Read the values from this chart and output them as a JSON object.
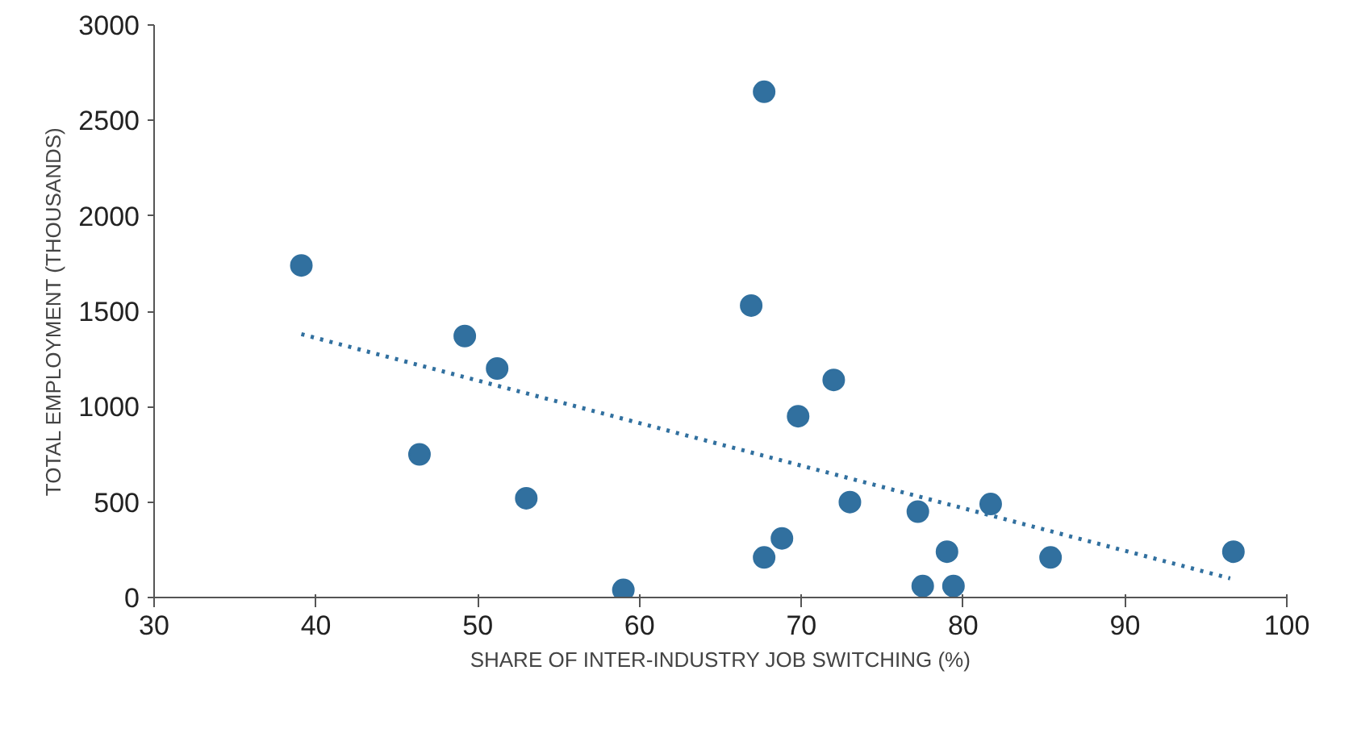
{
  "chart_data": {
    "type": "scatter",
    "xlabel": "SHARE OF INTER-INDUSTRY JOB SWITCHING (%)",
    "ylabel": "TOTAL EMPLOYMENT (THOUSANDS)",
    "xlim": [
      30,
      100
    ],
    "xticks": [
      30,
      40,
      50,
      60,
      70,
      80,
      90,
      100
    ],
    "ylim": [
      0,
      3000
    ],
    "yticks": [
      0,
      500,
      1000,
      1500,
      2000,
      2500,
      3000
    ],
    "grid": false,
    "series": [
      {
        "color": "#31709f",
        "marker": "circle",
        "x": [
          39.1,
          49.2,
          51.2,
          46.4,
          53.0,
          59.0,
          66.9,
          67.7,
          67.7,
          68.8,
          69.8,
          72.0,
          73.0,
          77.2,
          77.5,
          79.0,
          79.4,
          81.7,
          85.4,
          96.7
        ],
        "values": [
          1740,
          1370,
          1200,
          750,
          520,
          40,
          1530,
          2650,
          210,
          310,
          950,
          1140,
          500,
          450,
          60,
          240,
          60,
          490,
          210,
          240
        ]
      },
      {
        "type": "line",
        "color": "#31709f",
        "line_style": "dotted",
        "marker": "none",
        "x": [
          39.1,
          96.5
        ],
        "values": [
          1380,
          100
        ]
      }
    ]
  }
}
